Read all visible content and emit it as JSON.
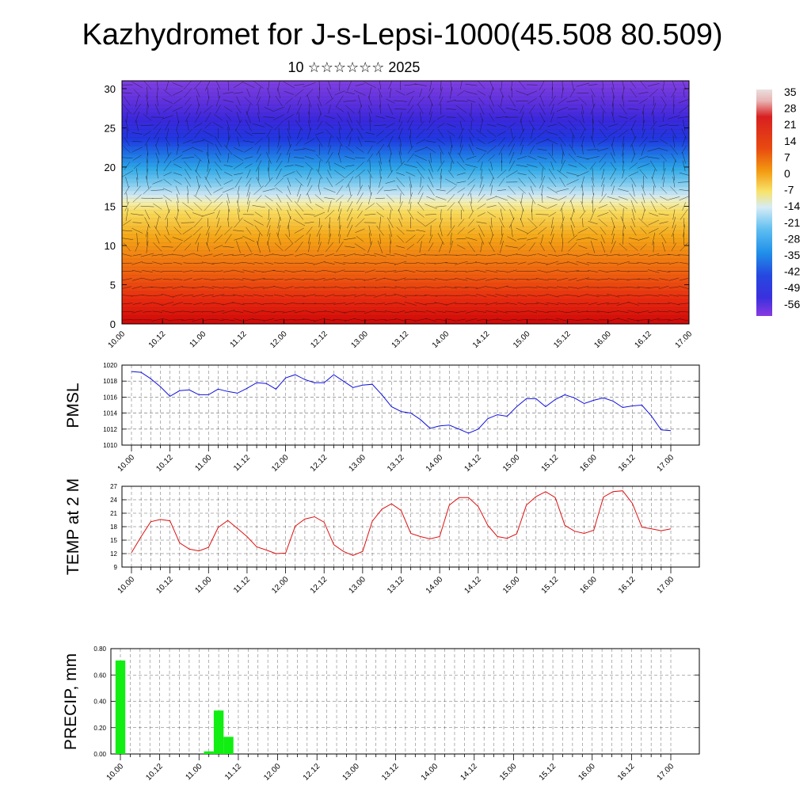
{
  "title": "Kazhydromet for J-s-Lepsi-1000(45.508 80.509)",
  "subtitle": "10 ☆☆☆☆☆☆ 2025",
  "time_labels": [
    "10.00",
    "10.12",
    "11.00",
    "11.12",
    "12.00",
    "12.12",
    "13.00",
    "13.12",
    "14.00",
    "14.12",
    "15.00",
    "15.12",
    "16.00",
    "16.12",
    "17.00"
  ],
  "colorbar": {
    "labels": [
      "35",
      "28",
      "21",
      "14",
      "7",
      "0",
      "-7",
      "-14",
      "-21",
      "-28",
      "-35",
      "-42",
      "-49",
      "-56"
    ],
    "colors": {
      "top": "#e9c4c4",
      "red": "#d21010",
      "orange": "#f07a10",
      "yellow": "#f8e36a",
      "light_blue": "#c9e7f4",
      "cyan": "#2ea8e8",
      "blue": "#2440e0",
      "purple": "#8a3ae0"
    }
  },
  "chart_data": [
    {
      "type": "heatmap",
      "name": "cross-section",
      "x": [
        "10.00",
        "10.12",
        "11.00",
        "11.12",
        "12.00",
        "12.12",
        "13.00",
        "13.12",
        "14.00",
        "14.12",
        "15.00",
        "15.12",
        "16.00",
        "16.12",
        "17.00"
      ],
      "yticks": [
        0,
        5,
        10,
        15,
        20,
        25,
        30
      ],
      "ylim": [
        0,
        31
      ],
      "colormap_range": [
        -56,
        35
      ],
      "overlay": "wind vectors"
    },
    {
      "type": "line",
      "ylabel": "PMSL",
      "color": "#1010e0",
      "ylim": [
        1010,
        1020
      ],
      "yticks": [
        1010,
        1012,
        1014,
        1016,
        1018,
        1020
      ],
      "values": [
        1019.2,
        1019.1,
        1018.3,
        1017.3,
        1016.1,
        1016.8,
        1016.9,
        1016.3,
        1016.3,
        1017.0,
        1016.7,
        1016.5,
        1017.1,
        1017.8,
        1017.7,
        1017.0,
        1018.4,
        1018.8,
        1018.2,
        1017.8,
        1017.8,
        1018.8,
        1018.0,
        1017.2,
        1017.5,
        1017.6,
        1016.3,
        1014.8,
        1014.2,
        1014.0,
        1013.2,
        1012.1,
        1012.4,
        1012.5,
        1012.0,
        1011.5,
        1012.0,
        1013.3,
        1013.8,
        1013.6,
        1014.8,
        1015.8,
        1015.8,
        1014.8,
        1015.7,
        1016.3,
        1015.9,
        1015.2,
        1015.6,
        1015.9,
        1015.5,
        1014.7,
        1014.9,
        1015.0,
        1013.6,
        1011.9,
        1011.8
      ]
    },
    {
      "type": "line",
      "ylabel": "TEMP at 2 M",
      "color": "#e01010",
      "ylim": [
        9,
        27
      ],
      "yticks": [
        9,
        12,
        15,
        18,
        21,
        24,
        27
      ],
      "values": [
        12.2,
        15.8,
        19.1,
        19.6,
        19.3,
        14.4,
        13.0,
        12.6,
        13.4,
        17.8,
        19.4,
        17.6,
        15.8,
        13.5,
        12.8,
        12.0,
        12.1,
        18.1,
        19.7,
        20.2,
        19.0,
        14.0,
        12.5,
        11.6,
        12.5,
        19.2,
        21.9,
        23.1,
        21.6,
        16.5,
        15.8,
        15.3,
        15.8,
        22.8,
        24.5,
        24.5,
        22.5,
        18.3,
        15.8,
        15.4,
        16.4,
        22.8,
        24.7,
        25.8,
        24.5,
        18.3,
        17.0,
        16.5,
        17.2,
        24.6,
        25.8,
        26.0,
        23.2,
        17.9,
        17.5,
        17.1,
        17.5
      ]
    },
    {
      "type": "bar",
      "ylabel": "PRECIP, mm",
      "color": "#11ee11",
      "ylim": [
        0,
        0.8
      ],
      "yticks": [
        "0.00",
        "0.20",
        "0.40",
        "0.60",
        "0.80"
      ],
      "values": [
        0.71,
        0,
        0,
        0,
        0,
        0,
        0,
        0,
        0,
        0.02,
        0.33,
        0.13,
        0,
        0,
        0,
        0,
        0,
        0,
        0,
        0,
        0,
        0,
        0,
        0,
        0,
        0,
        0,
        0,
        0,
        0,
        0,
        0,
        0,
        0,
        0,
        0,
        0,
        0,
        0,
        0,
        0,
        0,
        0,
        0,
        0,
        0,
        0,
        0,
        0,
        0,
        0,
        0,
        0,
        0,
        0,
        0,
        0
      ]
    }
  ]
}
